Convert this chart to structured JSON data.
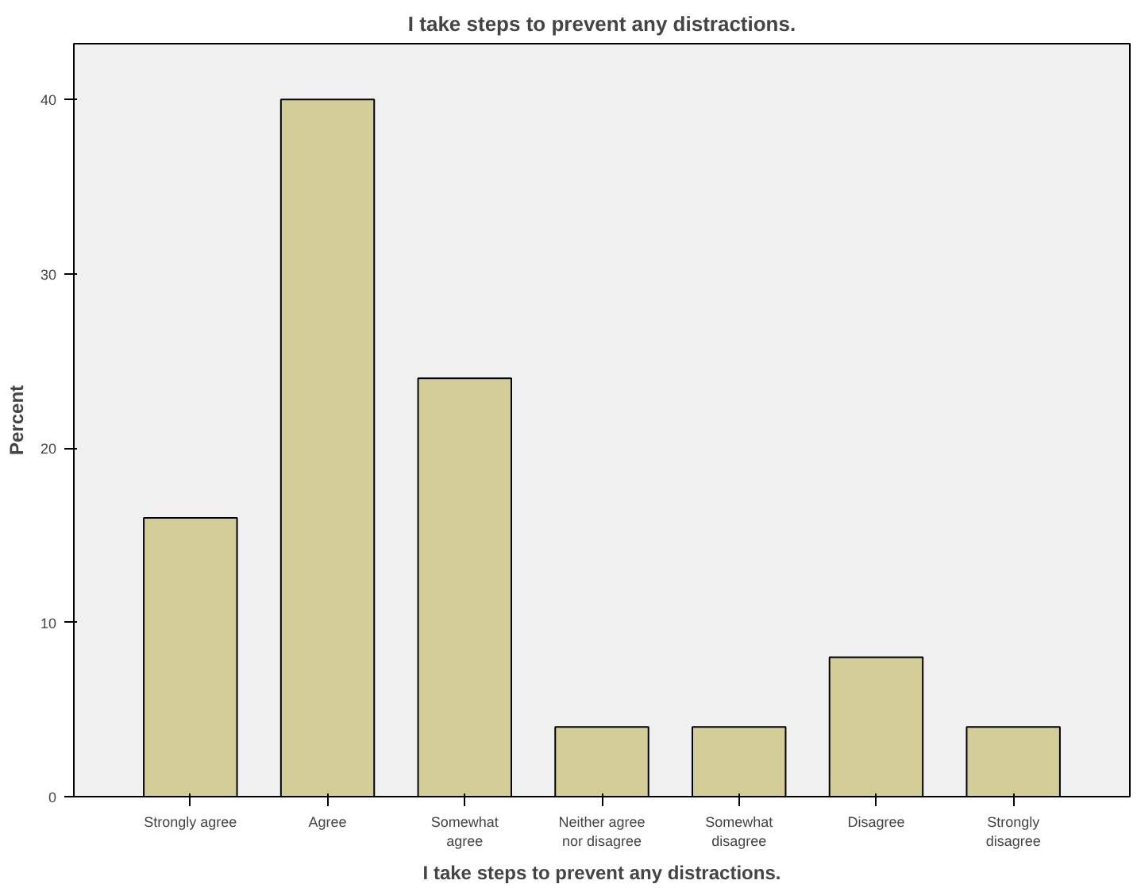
{
  "chart_data": {
    "type": "bar",
    "title": "I take steps to prevent any distractions.",
    "xlabel": "I take steps to prevent any distractions.",
    "ylabel": "Percent",
    "categories": [
      "Strongly agree",
      "Agree",
      "Somewhat\nagree",
      "Neither agree\nnor disagree",
      "Somewhat\ndisagree",
      "Disagree",
      "Strongly\ndisagree"
    ],
    "values": [
      16,
      40,
      24,
      4,
      4,
      8,
      4
    ],
    "color": "#d3ce97",
    "ylim": [
      0,
      43.2
    ],
    "yticks": [
      0,
      10,
      20,
      30,
      40
    ],
    "grid": false
  }
}
